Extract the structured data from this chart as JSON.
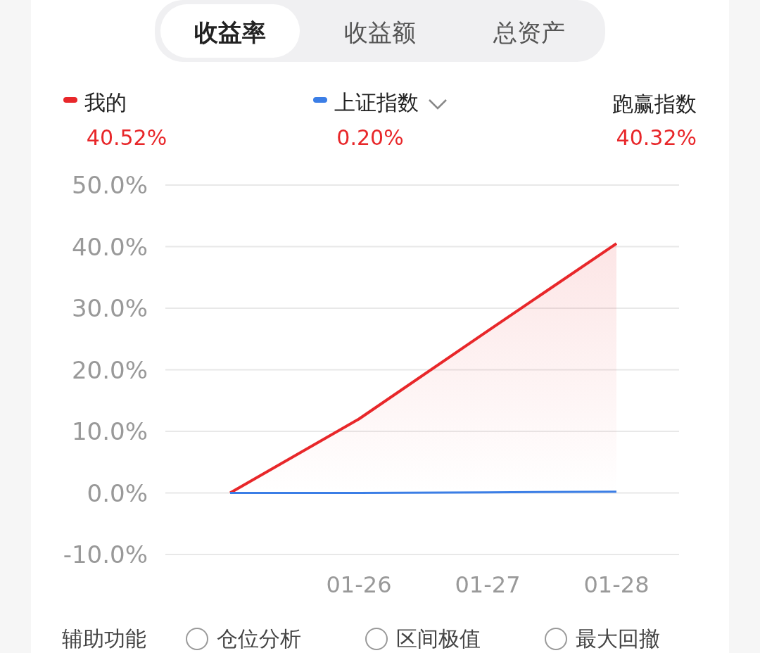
{
  "chart_data": {
    "type": "line",
    "categories": [
      null,
      "01-26",
      "01-27",
      "01-28"
    ],
    "series": [
      {
        "name": "我的",
        "color": "#e8272a",
        "type": "area",
        "values": [
          0,
          12,
          26.3,
          40.5
        ]
      },
      {
        "name": "上证指数",
        "color": "#3b7ee6",
        "values": [
          0,
          0,
          0.1,
          0.2
        ]
      }
    ],
    "ylim": [
      -10,
      50
    ],
    "yticks": [
      {
        "value": -10,
        "label": "-10.0%"
      },
      {
        "value": 0,
        "label": "0.0%"
      },
      {
        "value": 10,
        "label": "10.0%"
      },
      {
        "value": 20,
        "label": "20.0%"
      },
      {
        "value": 30,
        "label": "30.0%"
      },
      {
        "value": 40,
        "label": "40.0%"
      },
      {
        "value": 50,
        "label": "50.0%"
      }
    ],
    "grid": "y",
    "legend": "top",
    "annotations": [
      "收益率",
      "收益额",
      "总资产",
      "40.52%",
      "0.20%",
      "跑赢指数",
      "40.32%",
      "辅助功能",
      "仓位分析",
      "区间极值",
      "最大回撤"
    ]
  }
}
